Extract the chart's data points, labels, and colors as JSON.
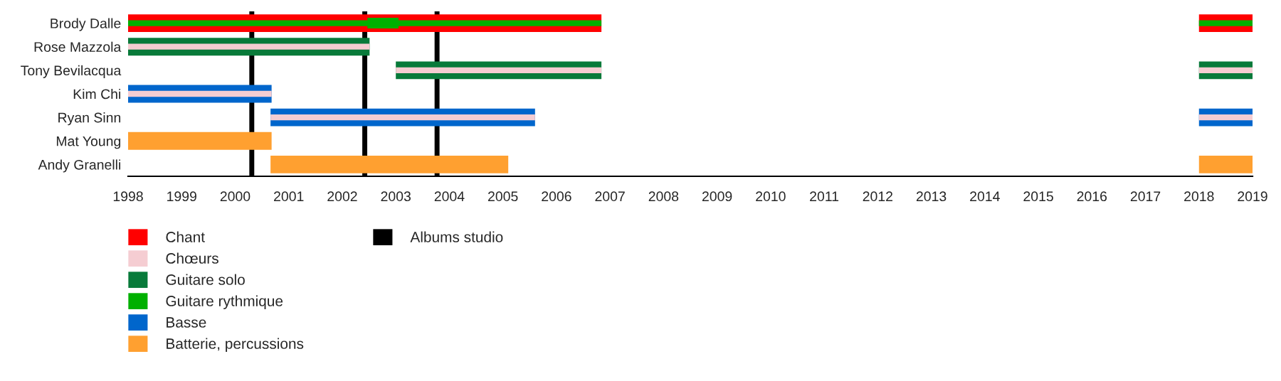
{
  "chart_data": {
    "type": "bar",
    "orientation": "horizontal",
    "categories": [
      "Brody Dalle",
      "Rose Mazzola",
      "Tony Bevilacqua",
      "Kim Chi",
      "Ryan Sinn",
      "Mat Young",
      "Andy Granelli"
    ],
    "xlim": [
      1998,
      2019
    ],
    "xticks": [
      1998,
      1999,
      2000,
      2001,
      2002,
      2003,
      2004,
      2005,
      2006,
      2007,
      2008,
      2009,
      2010,
      2011,
      2012,
      2013,
      2014,
      2015,
      2016,
      2017,
      2018,
      2019
    ],
    "grid": false,
    "legend": "bottom",
    "series": [
      {
        "name": "Chant",
        "color": "#ff0000",
        "base": [
          1998,
          null,
          null,
          null,
          null,
          null,
          null
        ],
        "values": [
          8.84,
          null,
          null,
          null,
          null,
          null,
          null
        ]
      },
      {
        "color": "#ff0000",
        "base": [
          2018,
          null,
          null,
          null,
          null,
          null,
          null
        ],
        "values": [
          1,
          null,
          null,
          null,
          null,
          null,
          null
        ]
      },
      {
        "color": "#087a3a",
        "base": [
          null,
          1998,
          2003,
          null,
          null,
          null,
          null
        ],
        "values": [
          null,
          4.51,
          3.84,
          null,
          null,
          null,
          null
        ]
      },
      {
        "color": "#0066cc",
        "base": [
          null,
          null,
          null,
          1998,
          2000.66,
          null,
          null
        ],
        "values": [
          null,
          null,
          null,
          2.68,
          4.94,
          null,
          null
        ]
      },
      {
        "name": "Chœurs",
        "color": "#f5cdd2",
        "base": [
          null,
          1998,
          2003,
          1998,
          2000.66,
          null,
          null
        ],
        "values": [
          null,
          4.51,
          3.84,
          2.68,
          4.94,
          null,
          null
        ]
      },
      {
        "name": "Guitare solo",
        "color": "#087a3a",
        "base": [
          null,
          null,
          2018,
          null,
          null,
          null,
          null
        ],
        "values": [
          null,
          null,
          1,
          null,
          null,
          null,
          null
        ]
      },
      {
        "name": "Guitare rythmique",
        "color": "#00b000",
        "base": [
          1998,
          null,
          null,
          null,
          null,
          null,
          null
        ],
        "values": [
          8.84,
          null,
          null,
          null,
          null,
          null,
          null
        ]
      },
      {
        "color": "#00b000",
        "base": [
          2018,
          null,
          null,
          null,
          null,
          null,
          null
        ],
        "values": [
          1,
          null,
          null,
          null,
          null,
          null,
          null
        ]
      },
      {
        "color": "#00b000",
        "base": [
          2002.47,
          null,
          null,
          null,
          null,
          null,
          null
        ],
        "values": [
          0.58,
          null,
          null,
          null,
          null,
          null,
          null
        ]
      },
      {
        "name": "Basse",
        "color": "#0066cc",
        "base": [
          null,
          null,
          null,
          null,
          2018,
          null,
          null
        ],
        "values": [
          null,
          null,
          null,
          null,
          1,
          null,
          null
        ]
      },
      {
        "color": "#f5cdd2",
        "base": [
          null,
          null,
          2018,
          null,
          2018,
          null,
          null
        ],
        "values": [
          null,
          null,
          1,
          null,
          1,
          null,
          null
        ]
      },
      {
        "name": "Batterie, percussions",
        "color": "#ffa030",
        "base": [
          null,
          null,
          null,
          null,
          null,
          1998,
          2000.66
        ],
        "values": [
          null,
          null,
          null,
          null,
          null,
          2.68,
          4.44
        ]
      },
      {
        "color": "#ffa030",
        "base": [
          null,
          null,
          null,
          null,
          null,
          null,
          2018
        ],
        "values": [
          null,
          null,
          null,
          null,
          null,
          null,
          1
        ]
      }
    ],
    "ref_lines": [
      {
        "axis": "x",
        "value": 2000.31,
        "label": "Albums studio",
        "color": "#000000"
      },
      {
        "axis": "x",
        "value": 2002.42,
        "color": "#000000"
      },
      {
        "axis": "x",
        "value": 2003.77,
        "color": "#000000"
      }
    ]
  }
}
